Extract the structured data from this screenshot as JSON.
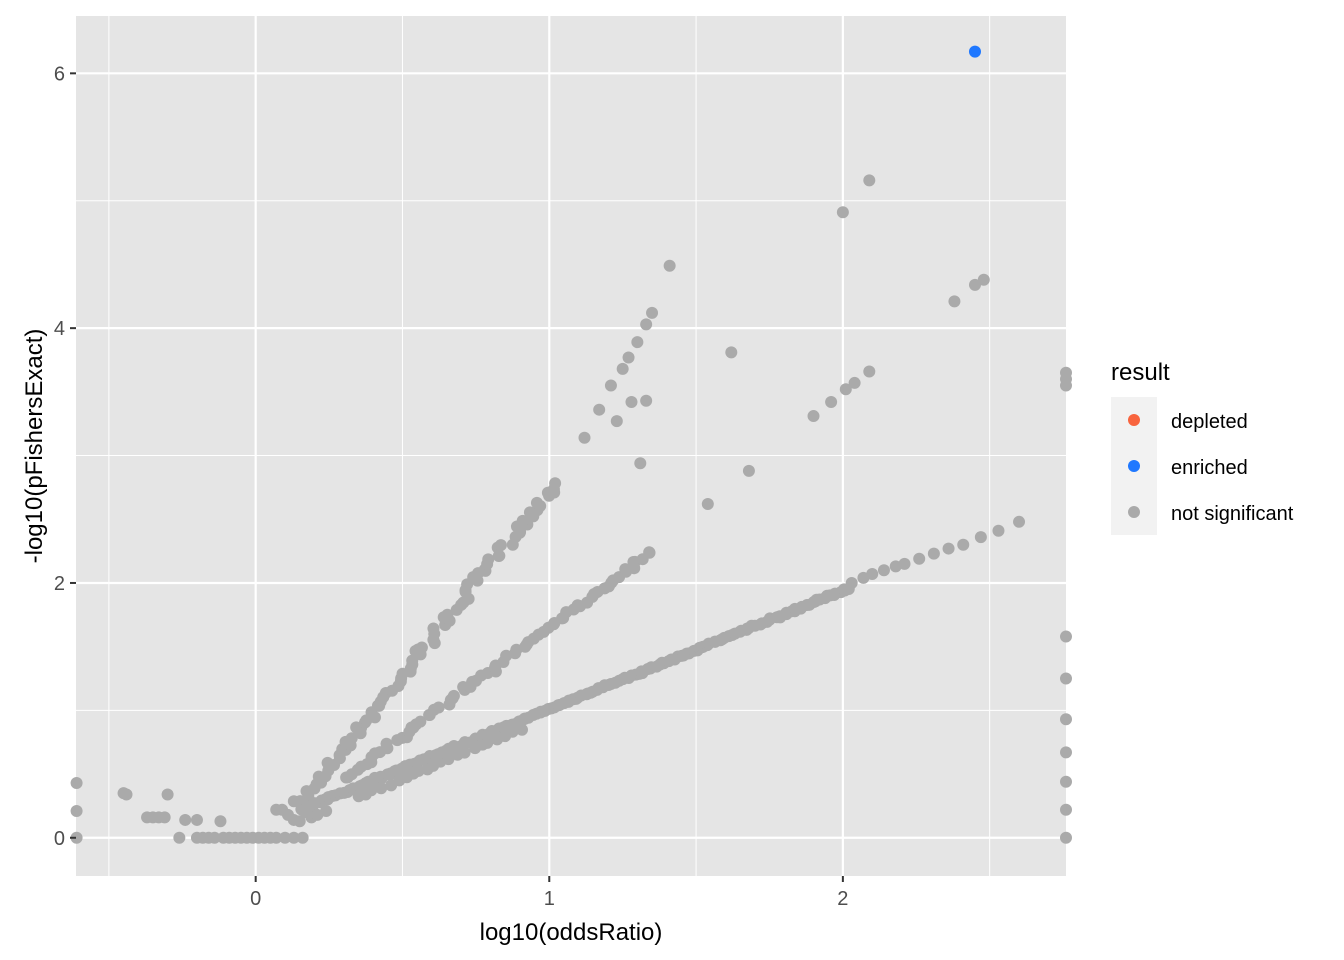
{
  "chart_data": {
    "type": "scatter",
    "title": "",
    "xlabel": "log10(oddsRatio)",
    "ylabel": "-log10(pFishersExact)",
    "xlim": [
      -0.612,
      2.76
    ],
    "ylim": [
      -0.3,
      6.45
    ],
    "x_ticks": [
      0,
      1,
      2
    ],
    "y_ticks": [
      0,
      2,
      4,
      6
    ],
    "grid": true,
    "legend": {
      "title": "result",
      "position": "right",
      "entries": [
        {
          "label": "depleted",
          "color": "#F8643E"
        },
        {
          "label": "enriched",
          "color": "#1F78FF"
        },
        {
          "label": "not significant",
          "color": "#AAAAAA"
        }
      ]
    },
    "colors": {
      "panel_background": "#E5E5E5",
      "grid": "#FFFFFF",
      "depleted": "#F8643E",
      "enriched": "#1F78FF",
      "not_significant": "#AAAAAA"
    },
    "series": [
      {
        "name": "enriched",
        "color": "#1F78FF",
        "points": [
          [
            2.45,
            6.17
          ]
        ]
      },
      {
        "name": "not significant",
        "color": "#AAAAAA",
        "points": [
          [
            -0.61,
            0.43
          ],
          [
            -0.61,
            0.21
          ],
          [
            -0.61,
            0.0
          ],
          [
            -0.45,
            0.35
          ],
          [
            -0.44,
            0.34
          ],
          [
            -0.37,
            0.16
          ],
          [
            -0.35,
            0.16
          ],
          [
            -0.33,
            0.16
          ],
          [
            -0.31,
            0.16
          ],
          [
            -0.3,
            0.34
          ],
          [
            -0.26,
            0.0
          ],
          [
            -0.24,
            0.14
          ],
          [
            -0.2,
            0.14
          ],
          [
            -0.2,
            0.0
          ],
          [
            -0.18,
            0.0
          ],
          [
            -0.16,
            0.0
          ],
          [
            -0.14,
            0.0
          ],
          [
            -0.12,
            0.13
          ],
          [
            -0.11,
            0.0
          ],
          [
            -0.09,
            0.0
          ],
          [
            -0.07,
            0.0
          ],
          [
            -0.05,
            0.0
          ],
          [
            -0.03,
            0.0
          ],
          [
            -0.01,
            0.0
          ],
          [
            0.01,
            0.0
          ],
          [
            0.03,
            0.0
          ],
          [
            0.05,
            0.0
          ],
          [
            0.07,
            0.0
          ],
          [
            0.1,
            0.0
          ],
          [
            0.13,
            0.0
          ],
          [
            0.16,
            0.0
          ],
          [
            0.07,
            0.22
          ],
          [
            0.09,
            0.22
          ],
          [
            0.11,
            0.18
          ],
          [
            0.13,
            0.14
          ],
          [
            0.15,
            0.13
          ],
          [
            0.17,
            0.2
          ],
          [
            0.19,
            0.16
          ],
          [
            0.21,
            0.18
          ],
          [
            0.24,
            0.21
          ],
          [
            1.12,
            3.14
          ],
          [
            1.17,
            3.36
          ],
          [
            1.21,
            3.55
          ],
          [
            1.23,
            3.27
          ],
          [
            1.25,
            3.68
          ],
          [
            1.27,
            3.77
          ],
          [
            1.28,
            3.42
          ],
          [
            1.3,
            3.89
          ],
          [
            1.31,
            2.94
          ],
          [
            1.33,
            3.43
          ],
          [
            1.33,
            4.03
          ],
          [
            1.35,
            4.12
          ],
          [
            1.41,
            4.49
          ],
          [
            1.54,
            2.62
          ],
          [
            1.62,
            3.81
          ],
          [
            1.68,
            2.88
          ],
          [
            1.9,
            3.31
          ],
          [
            1.96,
            3.42
          ],
          [
            2.01,
            3.52
          ],
          [
            2.04,
            3.57
          ],
          [
            2.09,
            3.66
          ],
          [
            2.0,
            4.91
          ],
          [
            2.09,
            5.16
          ],
          [
            2.38,
            4.21
          ],
          [
            2.45,
            4.34
          ],
          [
            2.48,
            4.38
          ],
          [
            2.76,
            3.65
          ],
          [
            2.76,
            3.6
          ],
          [
            2.76,
            3.55
          ],
          [
            2.76,
            1.58
          ],
          [
            2.76,
            1.25
          ],
          [
            2.76,
            0.93
          ],
          [
            2.76,
            0.67
          ],
          [
            2.76,
            0.44
          ],
          [
            2.76,
            0.22
          ],
          [
            2.76,
            0.0
          ],
          [
            2.6,
            2.48
          ],
          [
            2.53,
            2.41
          ],
          [
            2.47,
            2.36
          ],
          [
            2.41,
            2.3
          ],
          [
            2.36,
            2.27
          ],
          [
            2.31,
            2.23
          ],
          [
            2.26,
            2.19
          ],
          [
            2.21,
            2.15
          ],
          [
            2.18,
            2.13
          ],
          [
            2.14,
            2.1
          ],
          [
            2.1,
            2.07
          ],
          [
            2.07,
            2.04
          ],
          [
            2.03,
            2.0
          ]
        ]
      }
    ],
    "bands": [
      {
        "x0": 0.15,
        "y0": 0.27,
        "x1": 1.02,
        "y1": 2.78,
        "n": 88,
        "jitter": 0.04,
        "series": "not significant"
      },
      {
        "x0": 0.3,
        "y0": 0.46,
        "x1": 1.35,
        "y1": 2.25,
        "n": 74,
        "jitter": 0.03,
        "series": "not significant"
      },
      {
        "x0": 0.15,
        "y0": 0.22,
        "x1": 2.02,
        "y1": 1.96,
        "n": 180,
        "jitter": 0.015,
        "series": "not significant"
      },
      {
        "x0": 0.35,
        "y0": 0.32,
        "x1": 0.9,
        "y1": 0.85,
        "n": 22,
        "jitter": 0.02,
        "series": "not significant"
      }
    ]
  }
}
